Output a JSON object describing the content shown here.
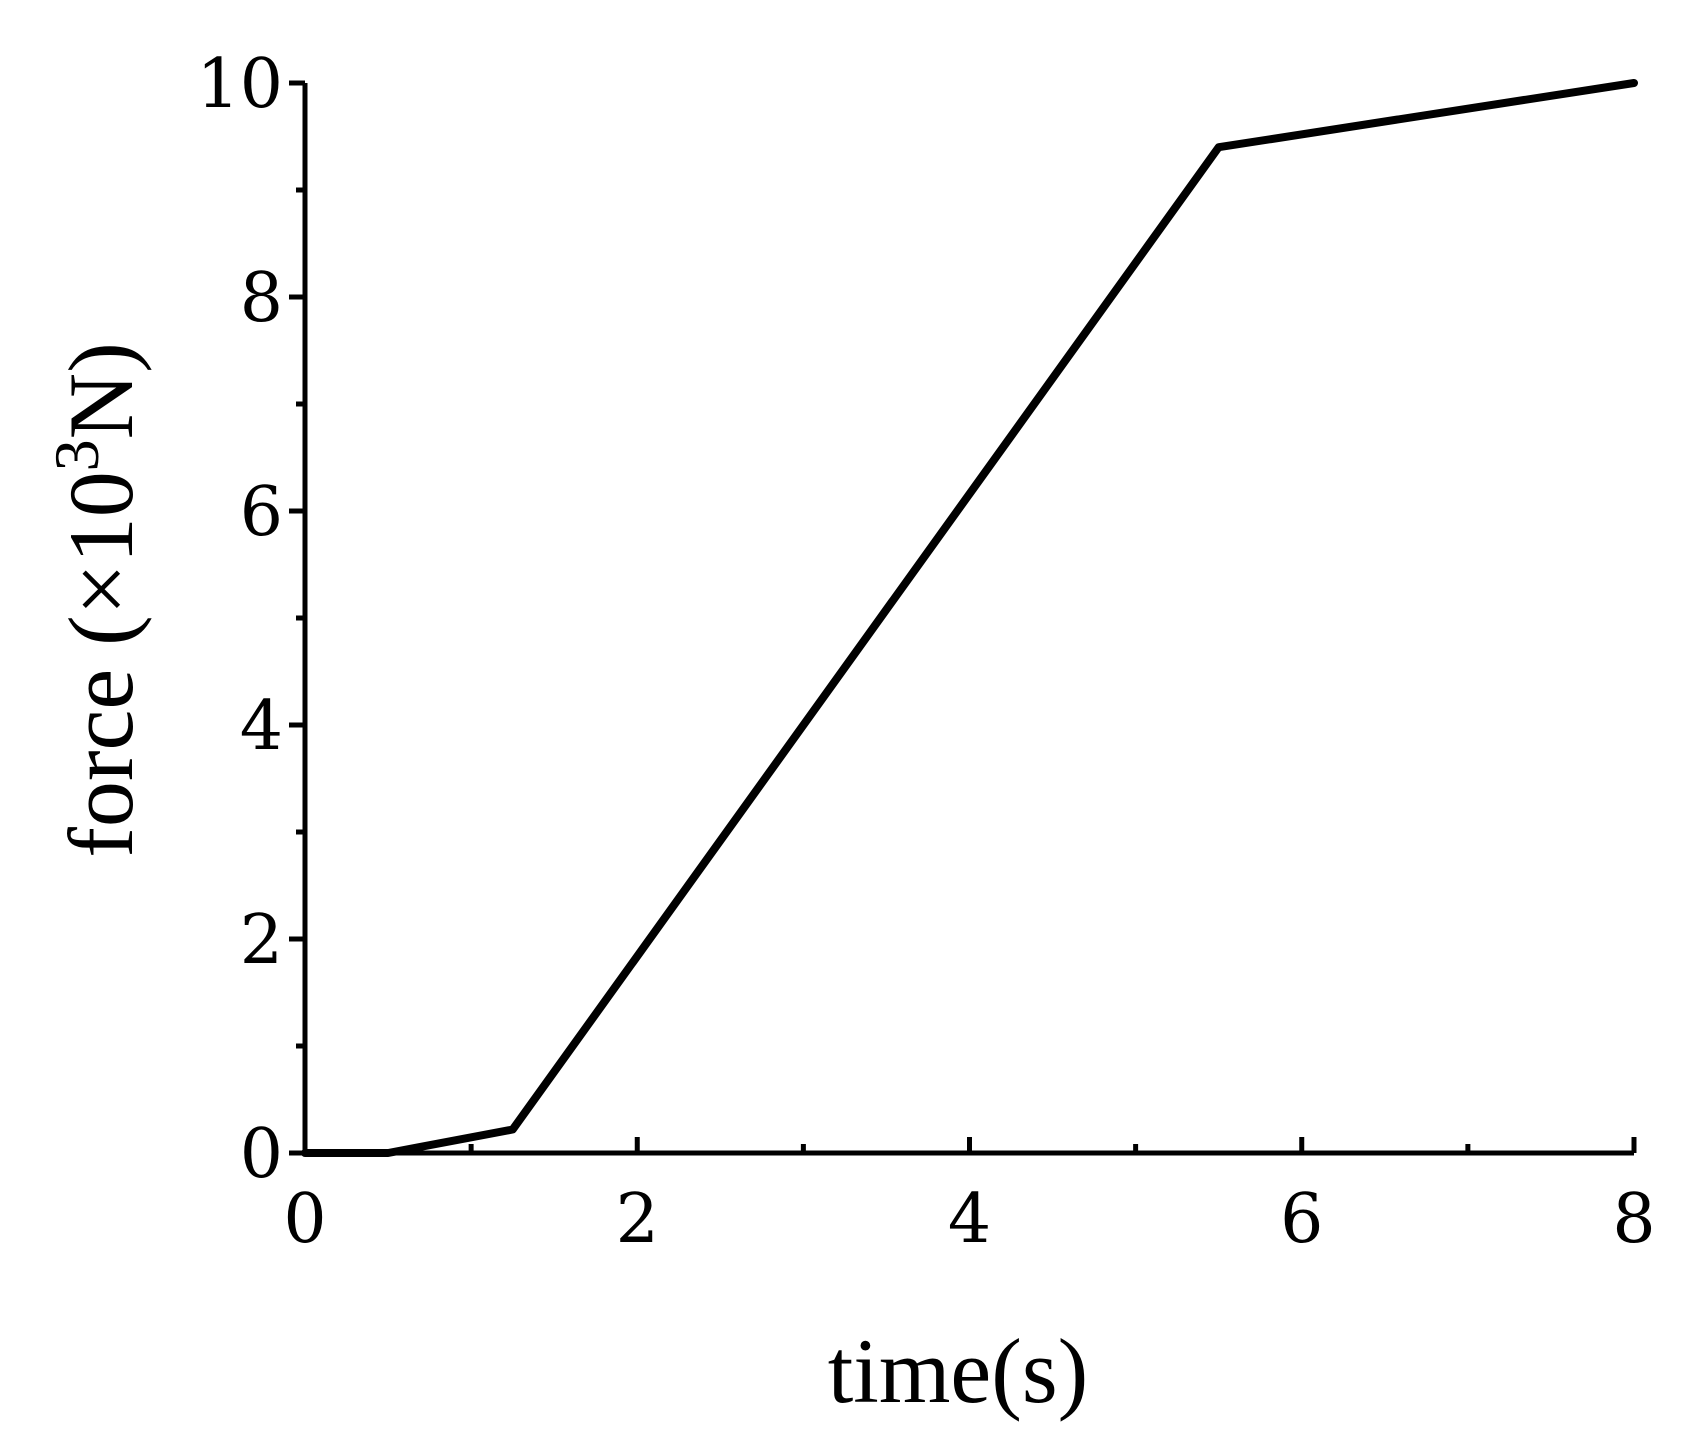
{
  "chart_data": {
    "type": "line",
    "title": "",
    "xlabel": "time(s)",
    "ylabel": {
      "prefix": "force (×10",
      "superscript": "3",
      "suffix": "N)"
    },
    "xlim": [
      0,
      8
    ],
    "ylim": [
      0,
      10
    ],
    "x_ticks": [
      0,
      2,
      4,
      6,
      8
    ],
    "x_minor_ticks": [
      1,
      3,
      5,
      7
    ],
    "y_ticks": [
      0,
      2,
      4,
      6,
      8,
      10
    ],
    "y_minor_ticks": [
      1,
      3,
      5,
      7,
      9
    ],
    "grid": false,
    "legend": "none",
    "color": "#000000",
    "series": [
      {
        "x": [
          0,
          0.5,
          1.25,
          5.5,
          8
        ],
        "y": [
          0,
          0,
          0.22,
          9.4,
          10
        ]
      }
    ]
  }
}
